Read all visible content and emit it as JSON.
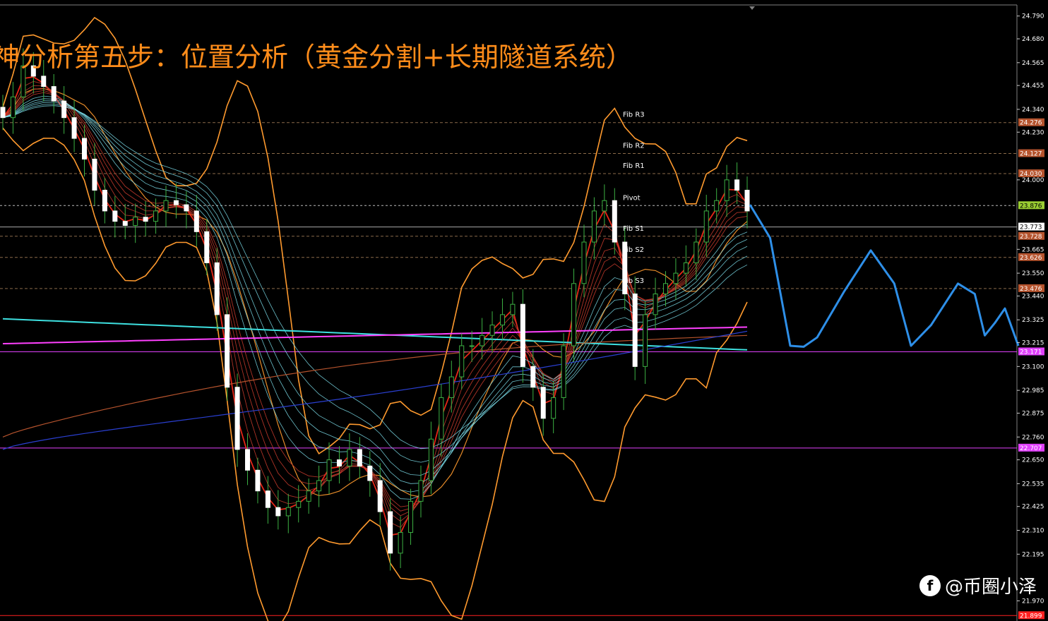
{
  "chart_data": {
    "type": "candlestick",
    "title": "神分析第五步：位置分析（黄金分割+长期隧道系统）",
    "ylim": [
      21.9,
      24.84
    ],
    "y_ticks": [
      "24.790",
      "24.680",
      "24.565",
      "24.455",
      "24.340",
      "24.230",
      "24.000",
      "23.665",
      "23.550",
      "23.440",
      "23.325",
      "23.215",
      "23.100",
      "22.985",
      "22.875",
      "22.760",
      "22.650",
      "22.535",
      "22.425",
      "22.310",
      "22.195",
      "21.970"
    ],
    "price_tags": [
      {
        "label": "24.276",
        "value": 24.276,
        "color": "#b5532d"
      },
      {
        "label": "24.127",
        "value": 24.127,
        "color": "#b5532d"
      },
      {
        "label": "24.030",
        "value": 24.03,
        "color": "#b5532d"
      },
      {
        "label": "23.876",
        "value": 23.876,
        "color": "#9acd32"
      },
      {
        "label": "23.773",
        "value": 23.773,
        "color": "#ffffff"
      },
      {
        "label": "23.728",
        "value": 23.728,
        "color": "#b5532d"
      },
      {
        "label": "23.626",
        "value": 23.626,
        "color": "#b5532d"
      },
      {
        "label": "23.476",
        "value": 23.476,
        "color": "#b5532d"
      },
      {
        "label": "23.171",
        "value": 23.171,
        "color": "#e040fb"
      },
      {
        "label": "22.707",
        "value": 22.707,
        "color": "#e040fb"
      },
      {
        "label": "21.899",
        "value": 21.899,
        "color": "#ff2020"
      }
    ],
    "pivot_levels": [
      {
        "name": "Fib R3",
        "value": 24.276
      },
      {
        "name": "Fib R2",
        "value": 24.127
      },
      {
        "name": "Fib R1",
        "value": 24.03
      },
      {
        "name": "Pivot",
        "value": 23.876
      },
      {
        "name": "Fib S1",
        "value": 23.728
      },
      {
        "name": "Fib S2",
        "value": 23.626
      },
      {
        "name": "Fib S3",
        "value": 23.476
      }
    ],
    "candles_close": [
      24.3,
      24.4,
      24.55,
      24.5,
      24.45,
      24.38,
      24.3,
      24.2,
      24.1,
      23.95,
      23.85,
      23.8,
      23.78,
      23.82,
      23.8,
      23.85,
      23.9,
      23.88,
      23.85,
      23.75,
      23.6,
      23.35,
      23.0,
      22.7,
      22.6,
      22.5,
      22.42,
      22.38,
      22.42,
      22.45,
      22.5,
      22.55,
      22.65,
      22.62,
      22.7,
      22.62,
      22.55,
      22.4,
      22.2,
      22.3,
      22.45,
      22.55,
      22.75,
      22.95,
      23.05,
      23.2,
      23.2,
      23.25,
      23.3,
      23.35,
      23.4,
      23.1,
      23.0,
      22.85,
      22.95,
      23.2,
      23.5,
      23.7,
      23.85,
      23.9,
      23.7,
      23.45,
      23.1,
      23.35,
      23.45,
      23.5,
      23.55,
      23.6,
      23.7,
      23.85,
      23.9,
      24.0,
      23.95,
      23.85
    ],
    "forecast_path": [
      {
        "x": 0,
        "y": 23.88
      },
      {
        "x": 6,
        "y": 23.72
      },
      {
        "x": 12,
        "y": 23.2
      },
      {
        "x": 16,
        "y": 23.195
      },
      {
        "x": 20,
        "y": 23.24
      },
      {
        "x": 28,
        "y": 23.46
      },
      {
        "x": 36,
        "y": 23.66
      },
      {
        "x": 43,
        "y": 23.5
      },
      {
        "x": 48,
        "y": 23.2
      },
      {
        "x": 54,
        "y": 23.3
      },
      {
        "x": 62,
        "y": 23.5
      },
      {
        "x": 67,
        "y": 23.45
      },
      {
        "x": 70,
        "y": 23.25
      },
      {
        "x": 73,
        "y": 23.31
      },
      {
        "x": 76,
        "y": 23.38
      },
      {
        "x": 80,
        "y": 23.2
      }
    ]
  },
  "watermark": {
    "icon": "f-logo-icon",
    "letter": "f",
    "text": "@币圈小泽"
  }
}
